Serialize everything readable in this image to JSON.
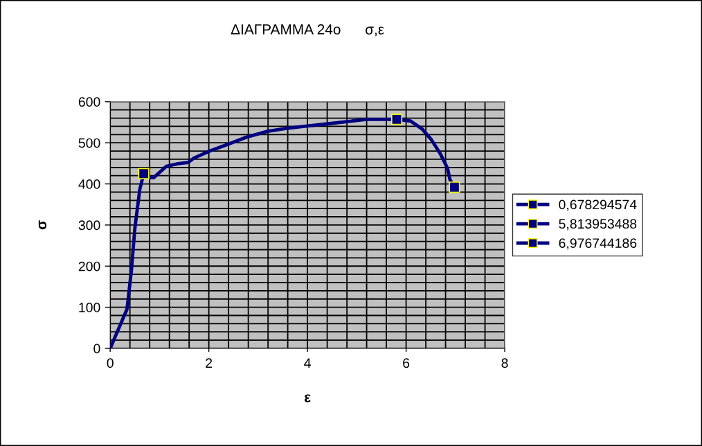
{
  "chart_data": {
    "type": "line",
    "title": "ΔΙΑΓΡΑΜΜΑ 24ο      σ,ε",
    "xlabel": "ε",
    "ylabel": "σ",
    "xlim": [
      0,
      8
    ],
    "xticks": [
      0,
      {
        "value": 0.4,
        "label": null
      },
      {
        "value": 0.8,
        "label": null
      },
      {
        "value": 1.2,
        "label": null
      },
      {
        "value": 1.6,
        "label": null
      },
      2,
      {
        "value": 2.4,
        "label": null
      },
      {
        "value": 2.8,
        "label": null
      },
      {
        "value": 3.2,
        "label": null
      },
      {
        "value": 3.6,
        "label": null
      },
      4,
      {
        "value": 4.4,
        "label": null
      },
      {
        "value": 4.8,
        "label": null
      },
      {
        "value": 5.2,
        "label": null
      },
      {
        "value": 5.6,
        "label": null
      },
      6,
      {
        "value": 6.4,
        "label": null
      },
      {
        "value": 6.8,
        "label": null
      },
      {
        "value": 7.2,
        "label": null
      },
      {
        "value": 7.6,
        "label": null
      },
      8
    ],
    "ylim": [
      0,
      600
    ],
    "yticks": [
      0,
      {
        "value": 20,
        "label": null
      },
      {
        "value": 40,
        "label": null
      },
      {
        "value": 60,
        "label": null
      },
      {
        "value": 80,
        "label": null
      },
      100,
      {
        "value": 120,
        "label": null
      },
      {
        "value": 140,
        "label": null
      },
      {
        "value": 160,
        "label": null
      },
      {
        "value": 180,
        "label": null
      },
      200,
      {
        "value": 220,
        "label": null
      },
      {
        "value": 240,
        "label": null
      },
      {
        "value": 260,
        "label": null
      },
      {
        "value": 280,
        "label": null
      },
      300,
      {
        "value": 320,
        "label": null
      },
      {
        "value": 340,
        "label": null
      },
      {
        "value": 360,
        "label": null
      },
      {
        "value": 380,
        "label": null
      },
      400,
      {
        "value": 420,
        "label": null
      },
      {
        "value": 440,
        "label": null
      },
      {
        "value": 460,
        "label": null
      },
      {
        "value": 480,
        "label": null
      },
      500,
      {
        "value": 520,
        "label": null
      },
      {
        "value": 540,
        "label": null
      },
      {
        "value": 560,
        "label": null
      },
      {
        "value": 580,
        "label": null
      },
      600
    ],
    "grid": true,
    "legend": "right",
    "series": [
      {
        "color": "#000080",
        "marker": "none",
        "x": [
          0,
          0.34,
          0.43,
          0.5,
          0.6,
          0.68,
          0.81,
          0.88,
          1.14,
          1.37,
          1.58,
          1.7,
          2.02,
          2.4,
          2.77,
          3.19,
          3.57,
          3.94,
          4.32,
          5.2,
          5.81,
          6.09,
          6.33,
          6.51,
          6.7,
          6.84,
          6.89,
          6.98
        ],
        "values": [
          0,
          95,
          190,
          292,
          387,
          425,
          415,
          415,
          443,
          449,
          452,
          463,
          480,
          497,
          514,
          528,
          535,
          540,
          545,
          557,
          557,
          553,
          533,
          508,
          472,
          438,
          410,
          392
        ]
      },
      {
        "type": "scatter",
        "name": "0,678294574",
        "color": "#000080",
        "marker": "square",
        "x": [
          0.68
        ],
        "values": [
          425
        ]
      },
      {
        "type": "scatter",
        "name": "5,813953488",
        "color": "#000080",
        "marker": "square",
        "x": [
          5.81
        ],
        "values": [
          557
        ]
      },
      {
        "type": "scatter",
        "name": "6,976744186",
        "color": "#000080",
        "marker": "square",
        "x": [
          6.98
        ],
        "values": [
          392
        ]
      }
    ]
  }
}
